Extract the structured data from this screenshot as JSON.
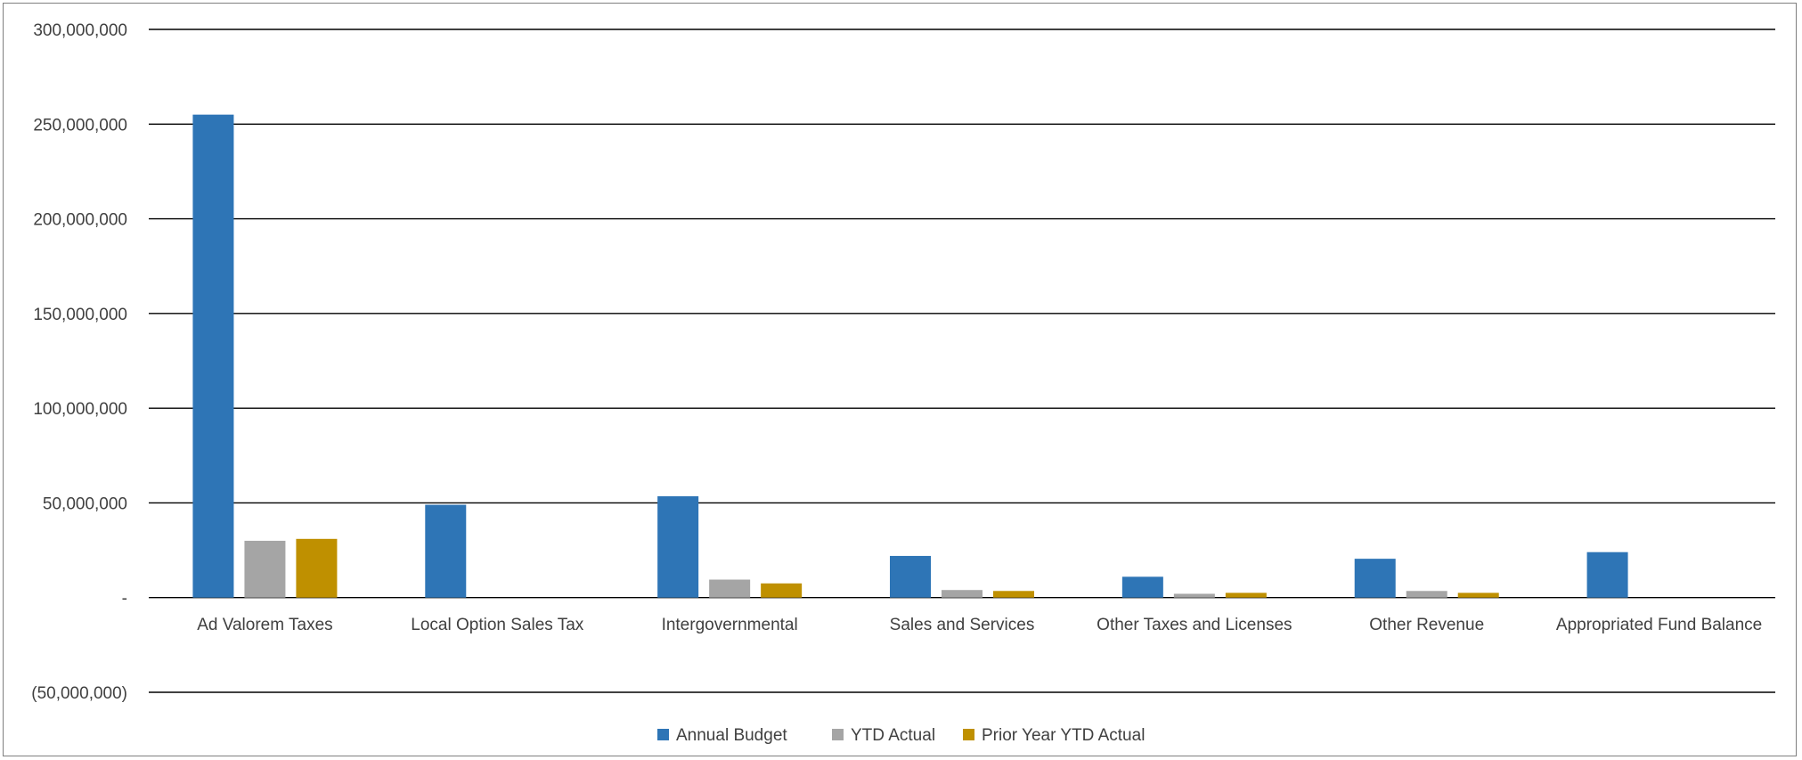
{
  "chart_data": {
    "type": "bar",
    "title": "",
    "xlabel": "",
    "ylabel": "",
    "ylim": [
      -50000000,
      300000000
    ],
    "yticks": [
      300000000,
      250000000,
      200000000,
      150000000,
      100000000,
      50000000,
      0,
      -50000000
    ],
    "ytick_labels": [
      "300,000,000",
      "250,000,000",
      "200,000,000",
      "150,000,000",
      "100,000,000",
      "50,000,000",
      "-",
      "(50,000,000)"
    ],
    "grid": true,
    "legend_position": "bottom",
    "categories": [
      "Ad Valorem Taxes",
      "Local Option Sales Tax",
      "Intergovernmental",
      "Sales and Services",
      "Other Taxes and Licenses",
      "Other Revenue",
      "Appropriated Fund Balance"
    ],
    "series": [
      {
        "name": "Annual Budget",
        "color": "#2e75b6",
        "values": [
          255000000,
          49000000,
          53500000,
          22000000,
          11000000,
          20500000,
          24000000
        ]
      },
      {
        "name": "YTD Actual",
        "color": "#a5a5a5",
        "values": [
          30000000,
          0,
          9500000,
          4000000,
          2000000,
          3500000,
          0
        ]
      },
      {
        "name": "Prior Year YTD Actual",
        "color": "#bf9000",
        "values": [
          31000000,
          0,
          7500000,
          3500000,
          2500000,
          2500000,
          0
        ]
      }
    ]
  }
}
